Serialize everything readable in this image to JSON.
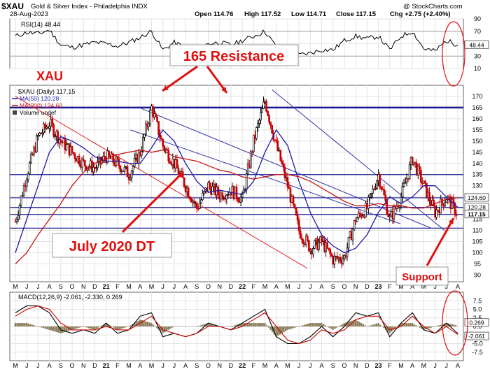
{
  "header": {
    "symbol": "$XAU",
    "name": "Gold & Silver Index - Philadelphia INDX",
    "date": "28-Aug-2023",
    "open": "Open 114.76",
    "high": "High 117.52",
    "low": "Low 114.71",
    "close": "Close 117.15",
    "change": "Chg +2.75 (+2.40%)",
    "credit": "@ StockCharts.com"
  },
  "annotations": {
    "xau": "XAU",
    "resistance": "165 Resistance",
    "dt": "July 2020 DT",
    "support": "Support"
  },
  "colors": {
    "price": "#000000",
    "up": "#000000",
    "down": "#cc0000",
    "ma50": "#1a1aa8",
    "ma200": "#cc1111",
    "hline": "#1a1a90",
    "annotation": "#e01010",
    "macd": "#000000",
    "signal": "#cc0000",
    "hist": "#8b7d5a",
    "rsi": "#000000"
  },
  "chart_data": [
    {
      "type": "line",
      "panel": "rsi",
      "label": "RSI(14) 48.44",
      "ylim": [
        10,
        90
      ],
      "yticks": [
        10,
        30,
        50,
        70,
        90
      ],
      "last_value_label": "48.44",
      "x": [
        "2020-05",
        "2020-06",
        "2020-07",
        "2020-08",
        "2020-09",
        "2020-10",
        "2020-11",
        "2020-12",
        "2021-01",
        "2021-02",
        "2021-03",
        "2021-04",
        "2021-05",
        "2021-06",
        "2021-07",
        "2021-08",
        "2021-09",
        "2021-10",
        "2021-11",
        "2021-12",
        "2022-01",
        "2022-02",
        "2022-03",
        "2022-04",
        "2022-05",
        "2022-06",
        "2022-07",
        "2022-08",
        "2022-09",
        "2022-10",
        "2022-11",
        "2022-12",
        "2023-01",
        "2023-02",
        "2023-03",
        "2023-04",
        "2023-05",
        "2023-06",
        "2023-07",
        "2023-08"
      ],
      "values": [
        62,
        68,
        66,
        72,
        48,
        44,
        48,
        52,
        50,
        46,
        52,
        60,
        70,
        40,
        52,
        44,
        38,
        50,
        52,
        48,
        55,
        62,
        70,
        45,
        35,
        32,
        35,
        40,
        40,
        55,
        62,
        58,
        62,
        40,
        62,
        70,
        42,
        38,
        55,
        48
      ]
    },
    {
      "type": "candlestick",
      "panel": "price",
      "label": "$XAU (Daily) 117.15",
      "ylim": [
        87,
        175
      ],
      "yticks": [
        90,
        95,
        100,
        105,
        110,
        115,
        120,
        125,
        130,
        135,
        140,
        145,
        150,
        155,
        160,
        165,
        170
      ],
      "x_labels": [
        "M",
        "J",
        "J",
        "A",
        "S",
        "O",
        "N",
        "D",
        "21",
        "F",
        "M",
        "A",
        "M",
        "J",
        "J",
        "A",
        "S",
        "O",
        "N",
        "D",
        "22",
        "F",
        "M",
        "A",
        "M",
        "J",
        "J",
        "A",
        "S",
        "O",
        "N",
        "D",
        "23",
        "F",
        "M",
        "A",
        "M",
        "J",
        "J",
        "A"
      ],
      "legend": [
        "$XAU (Daily) 117.15",
        "MA(50) 120.28",
        "MA(200) 124.60",
        "Volume undef"
      ],
      "close_path": {
        "x": [
          "2020-05",
          "2020-06",
          "2020-07",
          "2020-08",
          "2020-09",
          "2020-10",
          "2020-11",
          "2020-12",
          "2021-01",
          "2021-02",
          "2021-03",
          "2021-04",
          "2021-05",
          "2021-06",
          "2021-07",
          "2021-08",
          "2021-09",
          "2021-10",
          "2021-11",
          "2021-12",
          "2022-01",
          "2022-02",
          "2022-03",
          "2022-04",
          "2022-05",
          "2022-06",
          "2022-07",
          "2022-08",
          "2022-09",
          "2022-10",
          "2022-11",
          "2022-12",
          "2023-01",
          "2023-02",
          "2023-03",
          "2023-04",
          "2023-05",
          "2023-06",
          "2023-07",
          "2023-08"
        ],
        "values": [
          114,
          135,
          152,
          158,
          150,
          145,
          140,
          138,
          143,
          140,
          135,
          145,
          165,
          148,
          140,
          130,
          120,
          130,
          126,
          128,
          124,
          150,
          168,
          148,
          130,
          110,
          102,
          105,
          97,
          98,
          115,
          120,
          135,
          115,
          125,
          142,
          130,
          118,
          125,
          117.15
        ]
      },
      "series": [
        {
          "name": "MA(50) 120.28",
          "values": [
            100,
            115,
            130,
            145,
            152,
            150,
            147,
            143,
            141,
            141,
            140,
            140,
            147,
            155,
            150,
            140,
            132,
            127,
            128,
            127,
            126,
            132,
            145,
            155,
            148,
            132,
            118,
            108,
            103,
            100,
            102,
            108,
            118,
            125,
            122,
            125,
            130,
            130,
            125,
            120.28
          ]
        },
        {
          "name": "MA(200) 124.60",
          "values": [
            95,
            100,
            108,
            115,
            122,
            130,
            136,
            140,
            142,
            144,
            145,
            146,
            145,
            146,
            143,
            142,
            141,
            139,
            137,
            136,
            134,
            133,
            134,
            135,
            135,
            134,
            132,
            129,
            126,
            123,
            121,
            121,
            122,
            121,
            121,
            120,
            120,
            122,
            124,
            124.6
          ]
        }
      ],
      "hlines": [
        {
          "value": 165,
          "label": ""
        },
        {
          "value": 135,
          "label": ""
        },
        {
          "value": 124.6,
          "label": "124.60"
        },
        {
          "value": 120.28,
          "label": "120.28"
        },
        {
          "value": 117.15,
          "label": "117.15"
        },
        {
          "value": 111,
          "label": ""
        }
      ]
    },
    {
      "type": "line",
      "panel": "macd",
      "label": "MACD(12,26,9) -2.061, -2.330, 0.269",
      "ylim": [
        -10,
        10
      ],
      "yticks": [
        -7.5,
        -5.0,
        -2.5,
        0.0,
        2.5,
        5.0,
        7.5
      ],
      "value_labels": [
        "0.269",
        "-2.061"
      ],
      "x_labels": [
        "M",
        "J",
        "J",
        "A",
        "S",
        "O",
        "N",
        "D",
        "21",
        "F",
        "M",
        "A",
        "M",
        "J",
        "J",
        "A",
        "S",
        "O",
        "N",
        "D",
        "22",
        "F",
        "M",
        "A",
        "M",
        "J",
        "J",
        "A",
        "S",
        "O",
        "N",
        "D",
        "23",
        "F",
        "M",
        "A",
        "M",
        "J",
        "J",
        "A"
      ],
      "series": [
        {
          "name": "MACD",
          "values": [
            4,
            6,
            6,
            4,
            -1,
            -2,
            -1,
            -2,
            1,
            -2,
            -1,
            3,
            4,
            -3,
            -2,
            -3,
            -2,
            1,
            0,
            -1,
            1,
            3,
            5,
            -3,
            -5,
            -5,
            -3,
            0,
            -3,
            0,
            4,
            3,
            4,
            -3,
            1,
            4,
            -1,
            -2,
            1,
            -2.061
          ]
        },
        {
          "name": "Signal",
          "values": [
            3,
            5,
            6,
            5,
            1,
            -1,
            -1,
            -1,
            0,
            -1,
            -1,
            1,
            3,
            -1,
            -2,
            -3,
            -2,
            0,
            0,
            -1,
            0,
            2,
            4,
            0,
            -4,
            -5,
            -4,
            -1,
            -2,
            -1,
            2,
            3,
            3,
            -1,
            0,
            3,
            0,
            -2,
            0,
            -2.33
          ]
        },
        {
          "name": "Histogram",
          "values": [
            1,
            1,
            0,
            -1,
            -2,
            -1,
            0,
            -1,
            1,
            -1,
            0,
            2,
            1,
            -2,
            0,
            0,
            0,
            1,
            0,
            0,
            1,
            1,
            1,
            -3,
            -1,
            0,
            1,
            1,
            -1,
            1,
            2,
            0,
            1,
            -2,
            1,
            1,
            -1,
            0,
            1,
            0.269
          ]
        }
      ]
    }
  ]
}
